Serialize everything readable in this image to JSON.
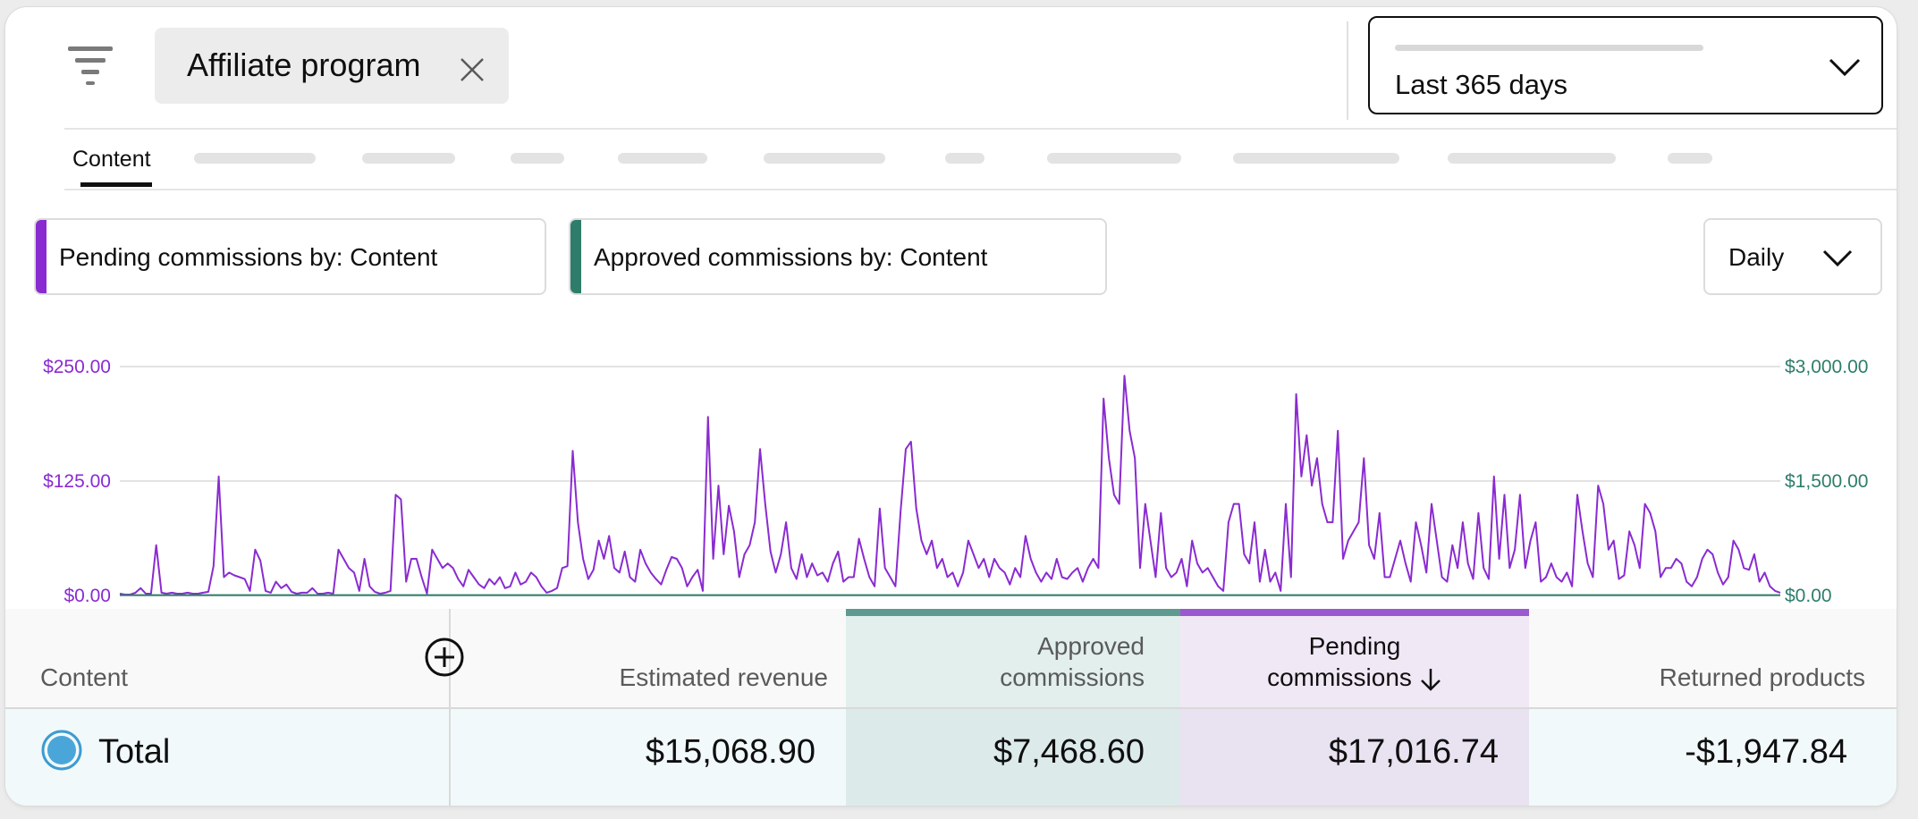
{
  "filter": {
    "icon": "filter-icon",
    "chip_label": "Affiliate program",
    "chip_close_icon": "close-icon"
  },
  "period": {
    "label": "Last 365 days",
    "icon": "chevron-down-icon"
  },
  "tabs": {
    "active_label": "Content"
  },
  "metrics": {
    "pending_label": "Pending commissions by: Content",
    "pending_color": "#8a2bd1",
    "approved_label": "Approved commissions by: Content",
    "approved_color": "#2e7d6b"
  },
  "granularity": {
    "label": "Daily"
  },
  "chart_data": {
    "type": "line",
    "title": "",
    "xlabel": "",
    "ylabel": "",
    "left_axis": {
      "ticks": [
        "$250.00",
        "$125.00",
        "$0.00"
      ],
      "range": [
        0,
        250
      ],
      "color": "#8a2bd1"
    },
    "right_axis": {
      "ticks": [
        "$3,000.00",
        "$1,500.00",
        "$0.00"
      ],
      "range": [
        0,
        3000
      ],
      "color": "#2e7d6b"
    },
    "x_points": 300,
    "series": [
      {
        "name": "Pending commissions by: Content",
        "axis": "left",
        "color": "#8a2bd1",
        "values": [
          2,
          1,
          1,
          3,
          8,
          2,
          2,
          55,
          3,
          2,
          3,
          2,
          2,
          3,
          2,
          2,
          3,
          4,
          32,
          130,
          20,
          25,
          22,
          20,
          18,
          5,
          50,
          38,
          5,
          3,
          15,
          8,
          12,
          4,
          2,
          3,
          3,
          8,
          2,
          2,
          3,
          2,
          50,
          40,
          30,
          25,
          5,
          40,
          10,
          4,
          2,
          3,
          5,
          110,
          105,
          15,
          40,
          40,
          20,
          2,
          50,
          40,
          30,
          35,
          30,
          18,
          10,
          28,
          20,
          12,
          8,
          18,
          12,
          20,
          8,
          10,
          25,
          12,
          15,
          25,
          20,
          10,
          3,
          5,
          8,
          30,
          32,
          158,
          80,
          40,
          18,
          28,
          60,
          40,
          65,
          30,
          25,
          48,
          20,
          15,
          50,
          35,
          25,
          18,
          12,
          28,
          42,
          40,
          30,
          10,
          20,
          28,
          5,
          195,
          40,
          120,
          45,
          98,
          70,
          20,
          45,
          55,
          80,
          160,
          100,
          48,
          25,
          45,
          80,
          30,
          18,
          45,
          20,
          35,
          22,
          25,
          15,
          35,
          48,
          15,
          20,
          20,
          62,
          40,
          20,
          10,
          95,
          30,
          20,
          10,
          92,
          160,
          168,
          95,
          60,
          45,
          60,
          30,
          40,
          20,
          25,
          10,
          25,
          60,
          45,
          30,
          40,
          20,
          40,
          30,
          25,
          12,
          30,
          20,
          65,
          40,
          25,
          15,
          25,
          18,
          40,
          20,
          18,
          25,
          30,
          15,
          30,
          40,
          30,
          215,
          150,
          110,
          100,
          240,
          180,
          150,
          30,
          100,
          60,
          20,
          90,
          30,
          20,
          25,
          40,
          10,
          60,
          35,
          25,
          30,
          20,
          10,
          5,
          80,
          100,
          100,
          45,
          35,
          80,
          15,
          50,
          15,
          25,
          5,
          100,
          20,
          220,
          130,
          175,
          120,
          150,
          100,
          80,
          80,
          180,
          40,
          60,
          70,
          80,
          150,
          55,
          40,
          90,
          20,
          20,
          40,
          60,
          35,
          15,
          80,
          55,
          25,
          100,
          60,
          20,
          15,
          55,
          30,
          80,
          35,
          18,
          90,
          30,
          18,
          130,
          40,
          110,
          30,
          50,
          110,
          30,
          60,
          80,
          15,
          20,
          35,
          20,
          15,
          25,
          10,
          110,
          70,
          35,
          20,
          120,
          100,
          50,
          60,
          18,
          22,
          70,
          55,
          30,
          100,
          90,
          70,
          20,
          30,
          30,
          40,
          35,
          15,
          10,
          20,
          40,
          50,
          45,
          25,
          12,
          20,
          60,
          50,
          30,
          28,
          45,
          15,
          25,
          10,
          5,
          3
        ]
      },
      {
        "name": "Approved commissions by: Content",
        "axis": "right",
        "color": "#2e7d6b",
        "values": [
          5,
          5,
          5,
          5,
          5,
          5,
          5,
          5,
          5,
          5,
          5,
          5,
          5,
          5,
          5,
          5,
          5,
          5,
          5,
          5,
          5,
          5,
          5,
          5,
          5,
          5,
          5,
          5,
          5,
          5,
          5,
          5,
          5,
          5,
          5,
          5,
          5,
          5,
          5,
          5,
          5,
          5,
          5,
          5,
          5,
          5,
          5,
          5,
          5,
          5,
          5,
          5,
          5,
          5,
          5,
          5,
          5,
          5,
          5,
          5,
          5,
          5,
          5,
          5,
          5,
          5,
          5,
          5,
          5,
          5,
          5,
          5,
          5,
          5,
          5,
          5,
          5,
          5,
          5,
          5,
          5,
          5,
          5,
          5,
          5,
          5,
          5,
          5,
          5,
          5,
          5,
          5,
          5,
          5,
          5,
          5,
          5,
          5,
          5,
          5,
          5,
          5,
          5,
          5,
          5,
          5,
          5,
          5,
          5,
          5,
          5,
          5,
          5,
          5,
          5,
          5,
          5,
          5,
          5,
          5,
          5,
          5,
          5,
          5,
          5,
          5,
          5,
          5,
          5,
          5,
          5,
          5,
          5,
          5,
          5,
          5,
          5,
          5,
          5,
          5,
          5,
          5,
          5,
          5,
          5,
          5,
          5,
          5,
          5,
          5,
          5,
          5,
          5,
          5,
          5,
          5,
          5,
          5,
          5,
          5,
          5,
          5,
          5,
          5,
          5,
          5,
          5,
          5,
          5,
          5,
          5,
          5,
          5,
          5,
          5,
          5,
          5,
          5,
          5,
          5,
          5,
          5,
          5,
          5,
          5,
          5,
          5,
          5,
          5,
          5,
          5,
          5,
          5,
          5,
          5,
          5,
          5,
          5,
          5,
          5,
          5,
          5,
          5,
          5,
          5,
          5,
          5,
          5,
          5,
          5,
          5,
          5,
          5,
          5,
          5,
          5,
          5,
          5,
          5,
          5,
          5,
          5,
          5,
          5,
          5,
          5,
          5,
          5,
          5,
          5,
          5,
          5,
          5,
          5,
          5,
          5,
          5,
          5,
          5,
          5,
          5,
          5,
          5,
          5,
          5,
          5,
          5,
          5,
          5,
          5,
          5,
          5,
          5,
          5,
          5,
          5,
          5,
          5,
          5,
          5,
          5,
          5,
          5,
          5,
          5,
          5,
          5,
          5,
          5,
          5,
          5,
          5,
          5,
          5,
          5,
          5,
          5,
          5,
          5,
          5,
          5,
          5,
          5,
          5,
          5,
          5,
          5,
          5,
          5,
          5,
          5,
          5,
          5,
          5,
          5,
          5,
          5,
          5,
          5,
          5,
          5,
          5,
          5,
          5,
          5,
          5,
          5,
          5,
          5,
          5,
          5,
          5,
          5,
          5
        ]
      }
    ]
  },
  "table": {
    "headers": {
      "content": "Content",
      "add_icon": "add-column-icon",
      "estimated_revenue": "Estimated revenue",
      "approved_line1": "Approved",
      "approved_line2": "commissions",
      "pending_line1": "Pending",
      "pending_line2": "commissions",
      "sort_icon": "arrow-down-icon",
      "returned_products": "Returned products"
    },
    "total_row": {
      "label": "Total",
      "estimated_revenue": "$15,068.90",
      "approved_commissions": "$7,468.60",
      "pending_commissions": "$17,016.74",
      "returned_products": "-$1,947.84"
    }
  }
}
